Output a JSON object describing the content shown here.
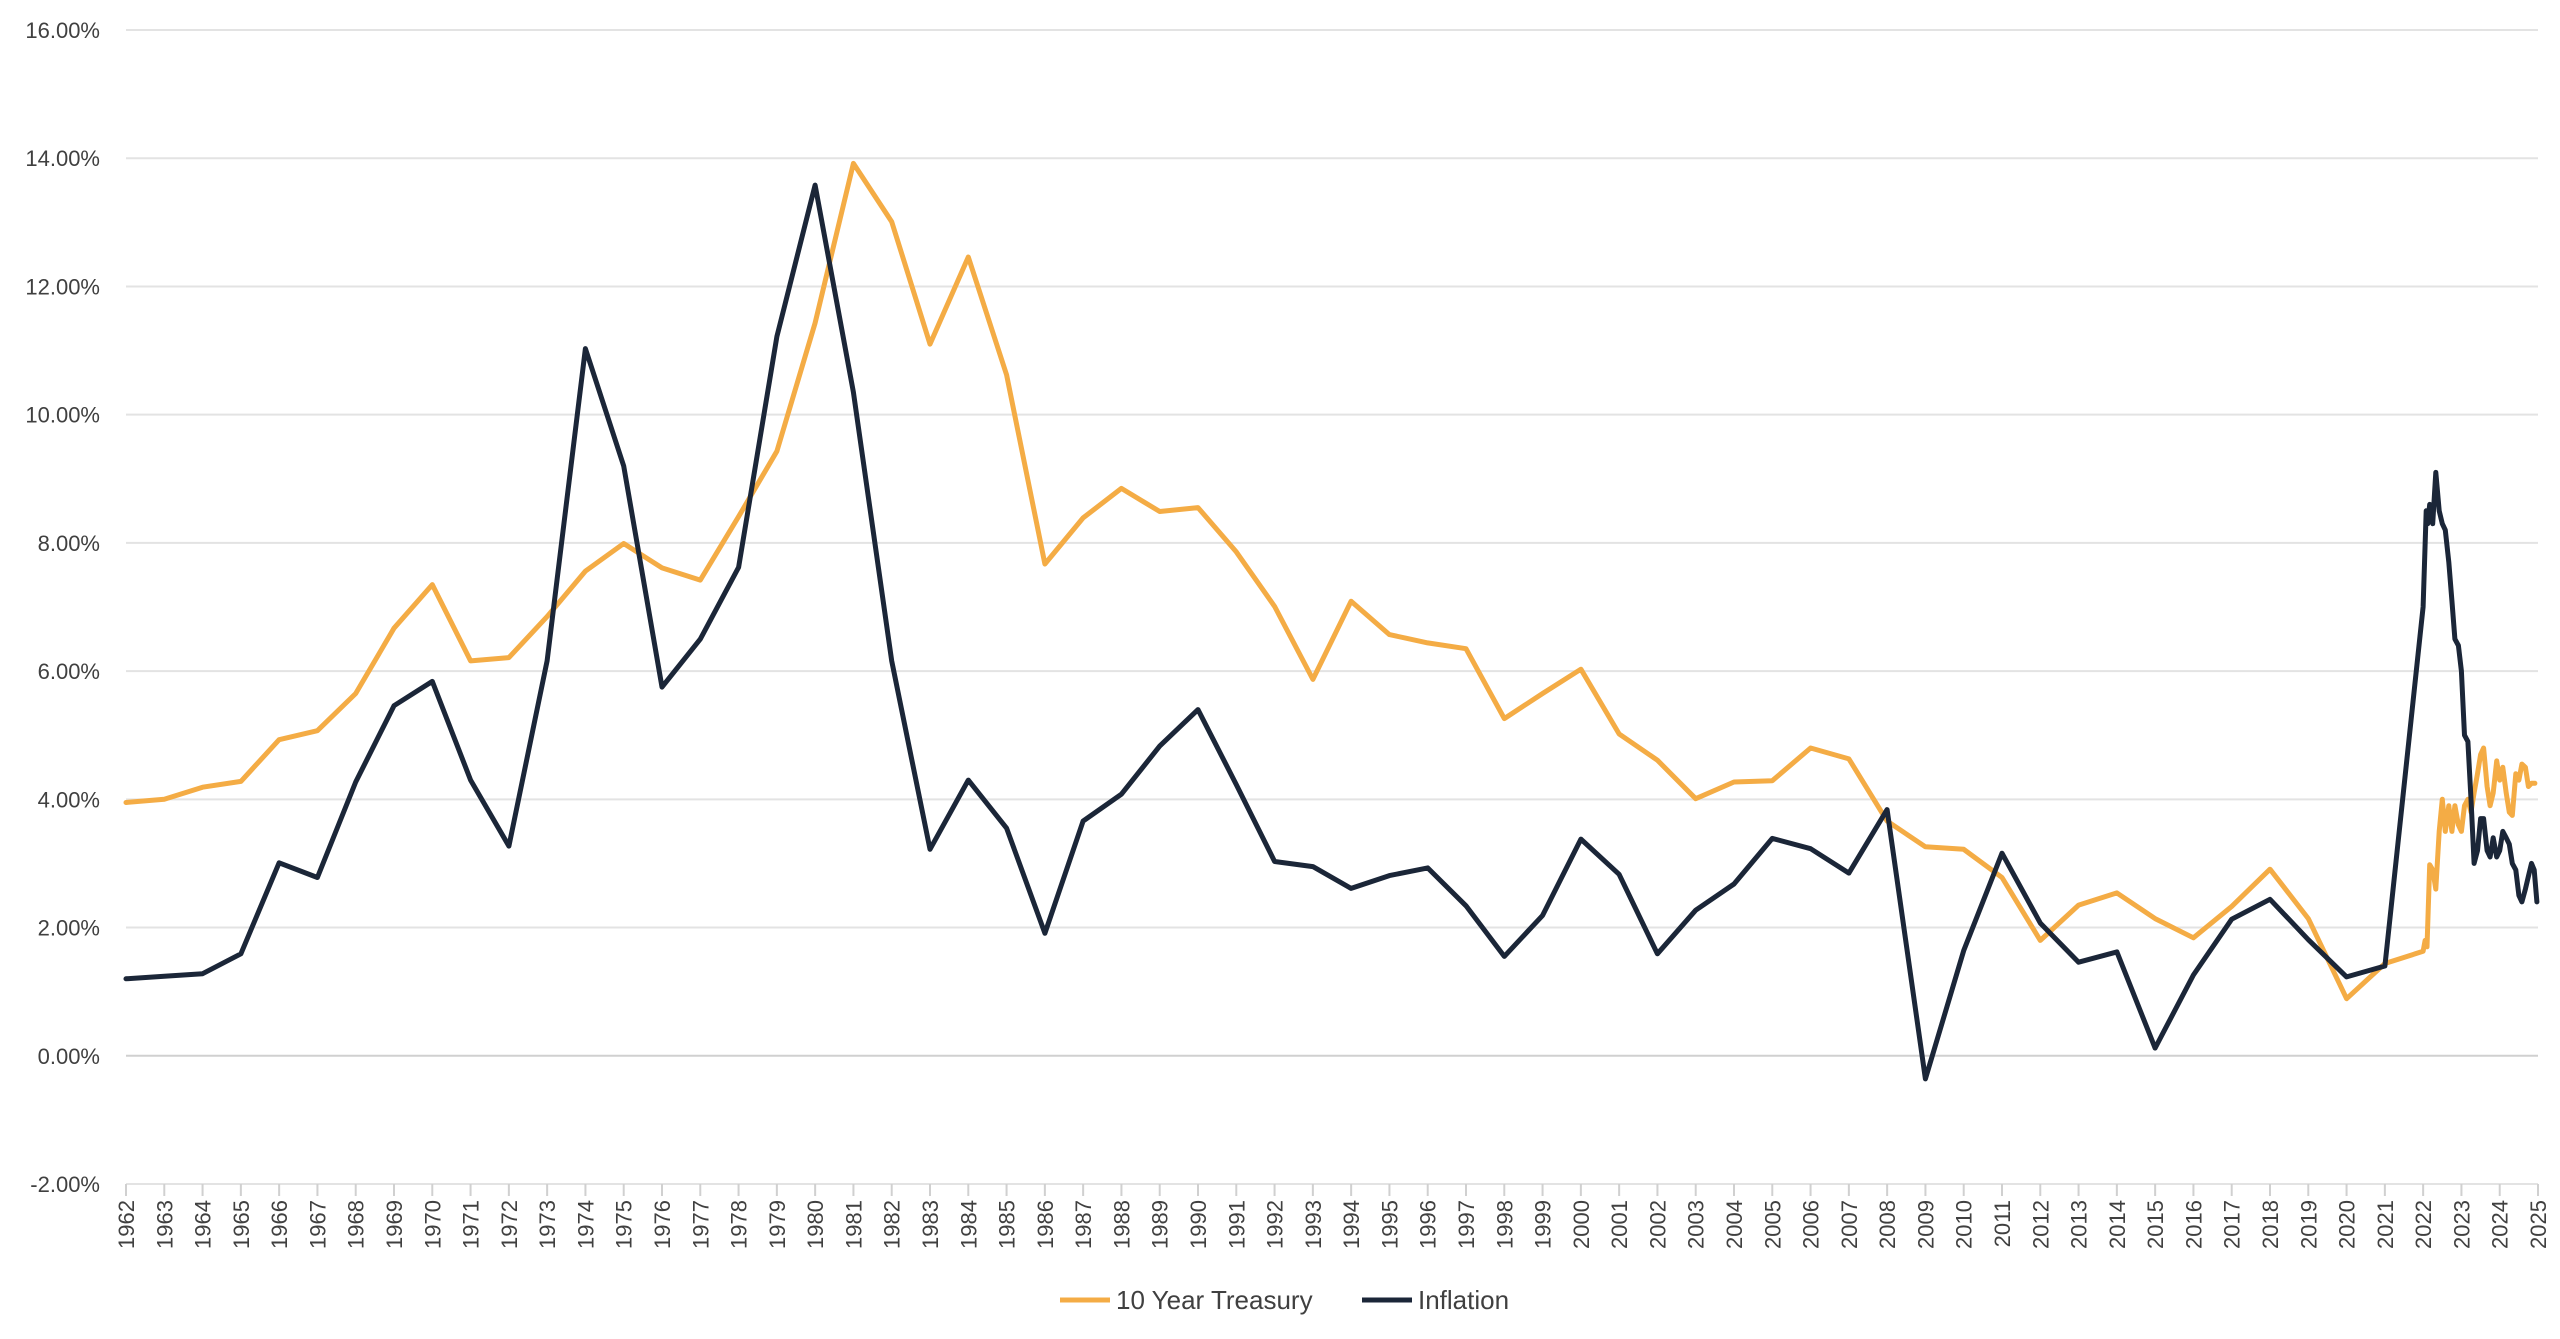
{
  "chart_data": {
    "type": "line",
    "title": "",
    "xlabel": "",
    "ylabel": "",
    "ylim": [
      -2,
      16
    ],
    "y_ticks": [
      {
        "value": -2,
        "label": "-2.00%"
      },
      {
        "value": 0,
        "label": "0.00%"
      },
      {
        "value": 2,
        "label": "2.00%"
      },
      {
        "value": 4,
        "label": "4.00%"
      },
      {
        "value": 6,
        "label": "6.00%"
      },
      {
        "value": 8,
        "label": "8.00%"
      },
      {
        "value": 10,
        "label": "10.00%"
      },
      {
        "value": 12,
        "label": "12.00%"
      },
      {
        "value": 14,
        "label": "14.00%"
      },
      {
        "value": 16,
        "label": "16.00%"
      }
    ],
    "x_tick_labels": [
      "1962",
      "1963",
      "1964",
      "1965",
      "1966",
      "1967",
      "1968",
      "1969",
      "1970",
      "1971",
      "1972",
      "1973",
      "1974",
      "1975",
      "1976",
      "1977",
      "1978",
      "1979",
      "1980",
      "1981",
      "1982",
      "1983",
      "1984",
      "1985",
      "1986",
      "1987",
      "1988",
      "1989",
      "1990",
      "1991",
      "1992",
      "1993",
      "1994",
      "1995",
      "1996",
      "1997",
      "1998",
      "1999",
      "2000",
      "2001",
      "2002",
      "2003",
      "2004",
      "2005",
      "2006",
      "2007",
      "2008",
      "2009",
      "2010",
      "2011",
      "2012",
      "2013",
      "2014",
      "2015",
      "2016",
      "2017",
      "2018",
      "2019",
      "2020",
      "2021",
      "2022",
      "2023",
      "2024",
      "2025"
    ],
    "grid": true,
    "legend_position": "bottom",
    "series": [
      {
        "name": "10 Year Treasury",
        "color": "#F4AC45",
        "points": [
          [
            1962,
            3.95
          ],
          [
            1963,
            4.0
          ],
          [
            1964,
            4.19
          ],
          [
            1965,
            4.28
          ],
          [
            1966,
            4.93
          ],
          [
            1967,
            5.07
          ],
          [
            1968,
            5.65
          ],
          [
            1969,
            6.67
          ],
          [
            1970,
            7.35
          ],
          [
            1971,
            6.16
          ],
          [
            1972,
            6.21
          ],
          [
            1973,
            6.85
          ],
          [
            1974,
            7.56
          ],
          [
            1975,
            7.99
          ],
          [
            1976,
            7.61
          ],
          [
            1977,
            7.42
          ],
          [
            1978,
            8.41
          ],
          [
            1979,
            9.43
          ],
          [
            1980,
            11.43
          ],
          [
            1981,
            13.92
          ],
          [
            1982,
            13.01
          ],
          [
            1983,
            11.1
          ],
          [
            1984,
            12.46
          ],
          [
            1985,
            10.62
          ],
          [
            1986,
            7.67
          ],
          [
            1987,
            8.39
          ],
          [
            1988,
            8.85
          ],
          [
            1989,
            8.49
          ],
          [
            1990,
            8.55
          ],
          [
            1991,
            7.86
          ],
          [
            1992,
            7.01
          ],
          [
            1993,
            5.87
          ],
          [
            1994,
            7.09
          ],
          [
            1995,
            6.57
          ],
          [
            1996,
            6.44
          ],
          [
            1997,
            6.35
          ],
          [
            1998,
            5.26
          ],
          [
            1999,
            5.65
          ],
          [
            2000,
            6.03
          ],
          [
            2001,
            5.02
          ],
          [
            2002,
            4.61
          ],
          [
            2003,
            4.01
          ],
          [
            2004,
            4.27
          ],
          [
            2005,
            4.29
          ],
          [
            2006,
            4.8
          ],
          [
            2007,
            4.63
          ],
          [
            2008,
            3.66
          ],
          [
            2009,
            3.26
          ],
          [
            2010,
            3.22
          ],
          [
            2011,
            2.78
          ],
          [
            2012,
            1.8
          ],
          [
            2013,
            2.35
          ],
          [
            2014,
            2.54
          ],
          [
            2015,
            2.14
          ],
          [
            2016,
            1.84
          ],
          [
            2017,
            2.33
          ],
          [
            2018,
            2.91
          ],
          [
            2019,
            2.14
          ],
          [
            2020,
            0.89
          ],
          [
            2021,
            1.44
          ],
          [
            2022.0,
            1.63
          ],
          [
            2022.05,
            1.8
          ],
          [
            2022.1,
            1.7
          ],
          [
            2022.17,
            2.98
          ],
          [
            2022.25,
            2.9
          ],
          [
            2022.33,
            2.6
          ],
          [
            2022.42,
            3.5
          ],
          [
            2022.5,
            4.0
          ],
          [
            2022.58,
            3.5
          ],
          [
            2022.67,
            3.9
          ],
          [
            2022.75,
            3.5
          ],
          [
            2022.83,
            3.9
          ],
          [
            2022.92,
            3.6
          ],
          [
            2023.0,
            3.5
          ],
          [
            2023.08,
            3.9
          ],
          [
            2023.17,
            4.0
          ],
          [
            2023.25,
            3.8
          ],
          [
            2023.33,
            4.1
          ],
          [
            2023.42,
            4.4
          ],
          [
            2023.5,
            4.7
          ],
          [
            2023.58,
            4.8
          ],
          [
            2023.67,
            4.2
          ],
          [
            2023.75,
            3.9
          ],
          [
            2023.83,
            4.1
          ],
          [
            2023.92,
            4.6
          ],
          [
            2024.0,
            4.3
          ],
          [
            2024.08,
            4.5
          ],
          [
            2024.17,
            4.1
          ],
          [
            2024.25,
            3.8
          ],
          [
            2024.33,
            3.75
          ],
          [
            2024.42,
            4.4
          ],
          [
            2024.5,
            4.3
          ],
          [
            2024.58,
            4.55
          ],
          [
            2024.67,
            4.5
          ],
          [
            2024.75,
            4.2
          ],
          [
            2024.83,
            4.25
          ],
          [
            2024.92,
            4.25
          ]
        ]
      },
      {
        "name": "Inflation",
        "color": "#1B2638",
        "points": [
          [
            1962,
            1.2
          ],
          [
            1963,
            1.24
          ],
          [
            1964,
            1.28
          ],
          [
            1965,
            1.59
          ],
          [
            1966,
            3.01
          ],
          [
            1967,
            2.78
          ],
          [
            1968,
            4.27
          ],
          [
            1969,
            5.46
          ],
          [
            1970,
            5.84
          ],
          [
            1971,
            4.3
          ],
          [
            1972,
            3.27
          ],
          [
            1973,
            6.16
          ],
          [
            1974,
            11.03
          ],
          [
            1975,
            9.2
          ],
          [
            1976,
            5.75
          ],
          [
            1977,
            6.5
          ],
          [
            1978,
            7.62
          ],
          [
            1979,
            11.22
          ],
          [
            1980,
            13.58
          ],
          [
            1981,
            10.35
          ],
          [
            1982,
            6.16
          ],
          [
            1983,
            3.22
          ],
          [
            1984,
            4.3
          ],
          [
            1985,
            3.55
          ],
          [
            1986,
            1.91
          ],
          [
            1987,
            3.66
          ],
          [
            1988,
            4.08
          ],
          [
            1989,
            4.83
          ],
          [
            1990,
            5.4
          ],
          [
            1991,
            4.23
          ],
          [
            1992,
            3.03
          ],
          [
            1993,
            2.95
          ],
          [
            1994,
            2.61
          ],
          [
            1995,
            2.81
          ],
          [
            1996,
            2.93
          ],
          [
            1997,
            2.34
          ],
          [
            1998,
            1.55
          ],
          [
            1999,
            2.19
          ],
          [
            2000,
            3.38
          ],
          [
            2001,
            2.83
          ],
          [
            2002,
            1.59
          ],
          [
            2003,
            2.27
          ],
          [
            2004,
            2.68
          ],
          [
            2005,
            3.39
          ],
          [
            2006,
            3.23
          ],
          [
            2007,
            2.85
          ],
          [
            2008,
            3.84
          ],
          [
            2009,
            -0.36
          ],
          [
            2010,
            1.64
          ],
          [
            2011,
            3.16
          ],
          [
            2012,
            2.07
          ],
          [
            2013,
            1.46
          ],
          [
            2014,
            1.62
          ],
          [
            2015,
            0.12
          ],
          [
            2016,
            1.26
          ],
          [
            2017,
            2.13
          ],
          [
            2018,
            2.44
          ],
          [
            2019,
            1.81
          ],
          [
            2020,
            1.23
          ],
          [
            2021,
            1.4
          ],
          [
            2022.0,
            7.0
          ],
          [
            2022.08,
            8.5
          ],
          [
            2022.12,
            8.3
          ],
          [
            2022.17,
            8.6
          ],
          [
            2022.25,
            8.3
          ],
          [
            2022.33,
            9.1
          ],
          [
            2022.42,
            8.5
          ],
          [
            2022.5,
            8.3
          ],
          [
            2022.58,
            8.2
          ],
          [
            2022.67,
            7.7
          ],
          [
            2022.75,
            7.1
          ],
          [
            2022.83,
            6.5
          ],
          [
            2022.92,
            6.4
          ],
          [
            2023.0,
            6.0
          ],
          [
            2023.08,
            5.0
          ],
          [
            2023.17,
            4.9
          ],
          [
            2023.25,
            4.0
          ],
          [
            2023.33,
            3.0
          ],
          [
            2023.42,
            3.2
          ],
          [
            2023.5,
            3.7
          ],
          [
            2023.58,
            3.7
          ],
          [
            2023.67,
            3.2
          ],
          [
            2023.75,
            3.1
          ],
          [
            2023.83,
            3.4
          ],
          [
            2023.92,
            3.1
          ],
          [
            2024.0,
            3.2
          ],
          [
            2024.08,
            3.5
          ],
          [
            2024.17,
            3.4
          ],
          [
            2024.25,
            3.3
          ],
          [
            2024.33,
            3.0
          ],
          [
            2024.42,
            2.9
          ],
          [
            2024.5,
            2.5
          ],
          [
            2024.58,
            2.4
          ],
          [
            2024.67,
            2.6
          ],
          [
            2024.75,
            2.8
          ],
          [
            2024.83,
            3.0
          ],
          [
            2024.9,
            2.9
          ],
          [
            2024.97,
            2.4
          ]
        ]
      }
    ]
  }
}
